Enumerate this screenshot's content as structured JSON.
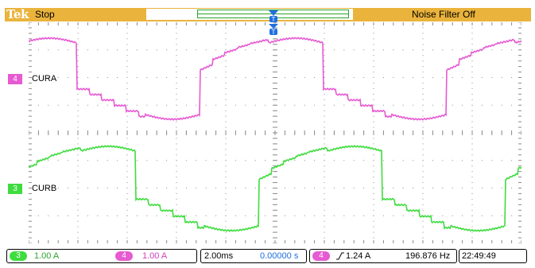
{
  "header": {
    "brand": "Tek",
    "run_state": "Stop",
    "noise_filter": "Noise Filter Off",
    "colors": {
      "bar": "#eab33c",
      "trigger_marker": "#1f6fe0"
    }
  },
  "channels": [
    {
      "number": "4",
      "label": "CURA",
      "color": "#e65ad2"
    },
    {
      "number": "3",
      "label": "CURB",
      "color": "#3fdc3f"
    }
  ],
  "footer": {
    "ch3_number": "3",
    "ch3_scale": "1.00 A",
    "ch4_number": "4",
    "ch4_scale": "1.00 A",
    "timebase": "2.00ms",
    "position": "0.00000 s",
    "trig_channel": "4",
    "trig_level": "1.24 A",
    "frequency": "196.876 Hz",
    "clock": "22:49:49"
  },
  "graticule": {
    "divisions_x": 10,
    "divisions_y": 8,
    "grid": true
  }
}
